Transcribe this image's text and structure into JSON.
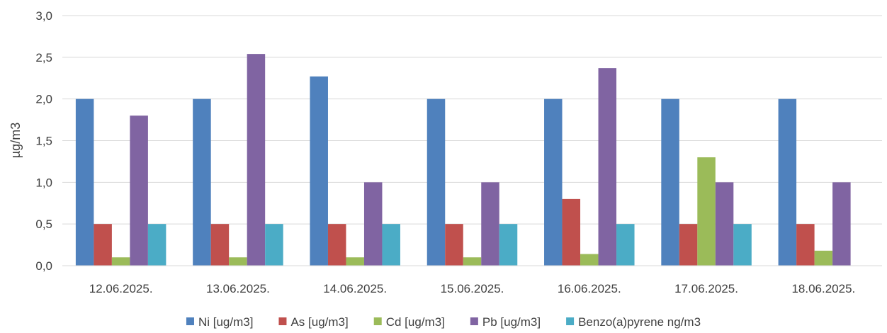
{
  "chart_data": {
    "type": "bar",
    "title": "",
    "xlabel": "",
    "ylabel": "µg/m3",
    "ylim": [
      0,
      3
    ],
    "yticks": [
      "0,0",
      "0,5",
      "1,0",
      "1,5",
      "2,0",
      "2,5",
      "3,0"
    ],
    "grid": true,
    "legend_position": "bottom",
    "categories": [
      "12.06.2025.",
      "13.06.2025.",
      "14.06.2025.",
      "15.06.2025.",
      "16.06.2025.",
      "17.06.2025.",
      "18.06.2025."
    ],
    "series": [
      {
        "name": "Ni [ug/m3]",
        "color": "#4f81bd",
        "values": [
          2.0,
          2.0,
          2.27,
          2.0,
          2.0,
          2.0,
          2.0
        ]
      },
      {
        "name": "As [ug/m3]",
        "color": "#c0504d",
        "values": [
          0.5,
          0.5,
          0.5,
          0.5,
          0.8,
          0.5,
          0.5
        ]
      },
      {
        "name": "Cd [ug/m3]",
        "color": "#9bbb59",
        "values": [
          0.1,
          0.1,
          0.1,
          0.1,
          0.14,
          1.3,
          0.18
        ]
      },
      {
        "name": "Pb [ug/m3]",
        "color": "#8064a2",
        "values": [
          1.8,
          2.54,
          1.0,
          1.0,
          2.37,
          1.0,
          1.0
        ]
      },
      {
        "name": "Benzo(a)pyrene ng/m3",
        "color": "#4bacc6",
        "values": [
          0.5,
          0.5,
          0.5,
          0.5,
          0.5,
          0.5,
          null
        ]
      }
    ]
  }
}
